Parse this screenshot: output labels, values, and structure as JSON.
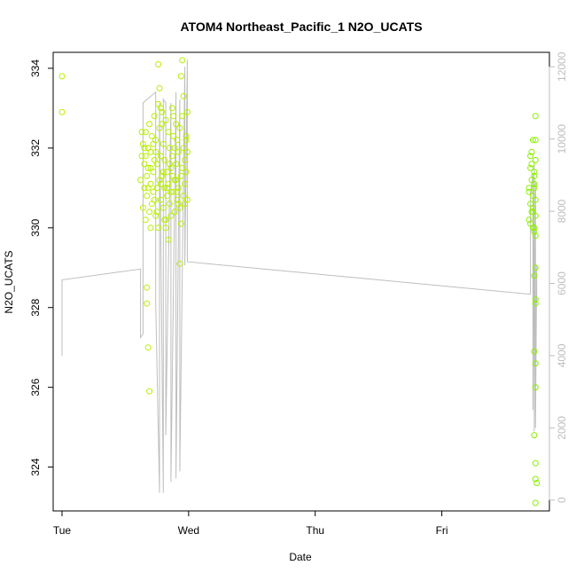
{
  "chart_data": {
    "type": "scatter",
    "title": "ATOM4 Northeast_Pacific_1 N2O_UCATS",
    "xlabel": "Date",
    "ylabel": "N2O_UCATS",
    "x_ticks": [
      {
        "label": "Tue",
        "value": 0
      },
      {
        "label": "Wed",
        "value": 1
      },
      {
        "label": "Thu",
        "value": 2
      },
      {
        "label": "Fri",
        "value": 3
      }
    ],
    "xlim": [
      -0.07,
      3.85
    ],
    "ylim": [
      322.9,
      334.4
    ],
    "y_ticks": [
      324,
      326,
      328,
      330,
      332,
      334
    ],
    "y2lim": [
      -300,
      12400
    ],
    "y2_ticks": [
      0,
      2000,
      4000,
      6000,
      8000,
      10000,
      12000
    ],
    "grid": false,
    "series": [
      {
        "kind": "points",
        "color": "#b8f000",
        "x": [
          0.0,
          0.0,
          0.62,
          0.63,
          0.64,
          0.64,
          0.65,
          0.65,
          0.66,
          0.66,
          0.67,
          0.67,
          0.68,
          0.68,
          0.69,
          0.69,
          0.7,
          0.7,
          0.71,
          0.71,
          0.72,
          0.72,
          0.73,
          0.73,
          0.74,
          0.74,
          0.75,
          0.75,
          0.76,
          0.76,
          0.77,
          0.77,
          0.78,
          0.78,
          0.79,
          0.79,
          0.8,
          0.8,
          0.81,
          0.81,
          0.82,
          0.82,
          0.83,
          0.83,
          0.84,
          0.84,
          0.85,
          0.85,
          0.86,
          0.86,
          0.87,
          0.87,
          0.88,
          0.88,
          0.89,
          0.89,
          0.9,
          0.9,
          0.91,
          0.91,
          0.92,
          0.92,
          0.93,
          0.93,
          0.94,
          0.94,
          0.95,
          0.95,
          0.96,
          0.96,
          0.97,
          0.97,
          0.98,
          0.98,
          0.99,
          0.99,
          0.67,
          0.67,
          0.68,
          0.69,
          0.7,
          0.76,
          0.77,
          0.78,
          0.79,
          0.82,
          0.84,
          0.88,
          0.91,
          0.93,
          0.94,
          0.95,
          0.96,
          0.98,
          0.99,
          0.63,
          0.65,
          0.66,
          0.7,
          0.72,
          0.74,
          0.75,
          0.81,
          0.83,
          0.85,
          0.87,
          0.89,
          0.92,
          0.97,
          0.68,
          0.8,
          0.86,
          0.9,
          0.73,
          0.78
        ],
        "y": [
          333.8,
          332.9,
          331.2,
          331.8,
          330.5,
          332.1,
          331.0,
          331.6,
          330.2,
          332.4,
          331.3,
          330.8,
          332.0,
          331.5,
          330.4,
          332.6,
          331.1,
          331.9,
          330.6,
          332.3,
          331.4,
          330.9,
          332.8,
          331.7,
          330.3,
          332.2,
          331.0,
          331.6,
          330.0,
          333.1,
          331.2,
          332.5,
          330.7,
          331.8,
          332.9,
          331.3,
          330.5,
          332.1,
          331.0,
          331.7,
          330.2,
          332.7,
          331.4,
          330.8,
          332.4,
          331.1,
          330.6,
          332.0,
          331.5,
          330.3,
          333.0,
          331.8,
          330.9,
          332.3,
          331.2,
          330.4,
          332.6,
          331.6,
          330.7,
          332.2,
          331.0,
          331.9,
          330.5,
          332.5,
          331.3,
          330.1,
          332.8,
          331.5,
          330.8,
          332.0,
          331.1,
          330.6,
          332.3,
          331.4,
          330.7,
          331.9,
          328.5,
          328.1,
          327.0,
          325.9,
          330.0,
          334.1,
          333.5,
          333.0,
          332.6,
          330.0,
          329.7,
          332.8,
          330.9,
          329.1,
          333.8,
          334.2,
          333.3,
          332.2,
          332.9,
          332.4,
          332.0,
          331.8,
          331.5,
          332.1,
          331.9,
          330.4,
          330.2,
          331.0,
          331.6,
          331.3,
          332.0,
          330.6,
          331.7,
          331.0,
          331.4,
          330.9,
          331.2,
          330.7,
          331.1
        ]
      },
      {
        "kind": "points",
        "color": "#8cf000",
        "x": [
          3.69,
          3.69,
          3.7,
          3.7,
          3.71,
          3.71,
          3.71,
          3.72,
          3.72,
          3.72,
          3.73,
          3.73,
          3.73,
          3.74,
          3.74,
          3.74,
          3.69,
          3.7,
          3.71,
          3.72,
          3.73,
          3.74,
          3.7,
          3.72,
          3.73,
          3.74,
          3.74,
          3.74,
          3.73,
          3.74,
          3.74,
          3.73,
          3.74,
          3.74,
          3.73,
          3.74,
          3.74,
          3.75,
          3.74,
          3.73
        ],
        "y": [
          331.0,
          330.2,
          331.5,
          330.6,
          331.9,
          330.4,
          331.2,
          330.8,
          332.2,
          330.0,
          331.4,
          329.9,
          331.0,
          330.3,
          331.7,
          329.8,
          330.9,
          330.1,
          331.6,
          330.5,
          331.3,
          330.7,
          331.8,
          330.4,
          331.1,
          332.8,
          332.2,
          329.0,
          328.8,
          328.2,
          328.1,
          326.9,
          326.6,
          326.0,
          324.8,
          324.1,
          323.7,
          323.6,
          323.1,
          330.0
        ]
      },
      {
        "kind": "line",
        "axis": "right",
        "color": "#bebebe",
        "x": [
          0.0,
          0.0,
          0.62,
          0.62,
          0.64,
          0.64,
          0.74,
          0.74,
          0.77,
          0.77,
          0.8,
          0.8,
          0.82,
          0.82,
          0.86,
          0.86,
          0.9,
          0.9,
          0.93,
          0.93,
          0.97,
          0.97,
          0.99,
          0.99,
          3.7,
          3.7,
          3.72,
          3.72,
          3.73,
          3.73,
          3.74,
          3.74,
          3.75,
          3.75
        ],
        "y": [
          4000,
          6100,
          6400,
          4500,
          4600,
          11000,
          11300,
          5500,
          200,
          11000,
          200,
          11100,
          11000,
          1800,
          11000,
          500,
          11300,
          600,
          11100,
          800,
          12000,
          6500,
          12200,
          6600,
          5700,
          8500,
          9000,
          2500,
          9300,
          1900,
          8800,
          2000,
          6500,
          5500
        ]
      }
    ]
  }
}
